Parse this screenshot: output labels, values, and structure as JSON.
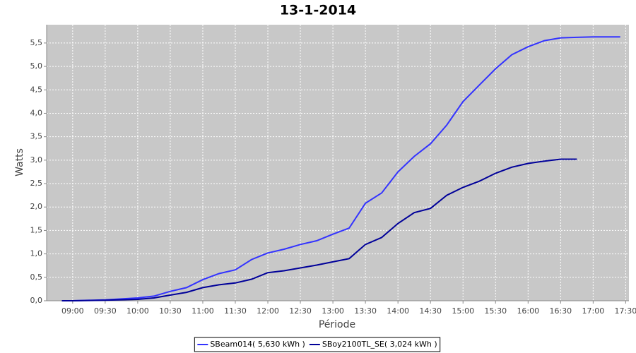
{
  "chart_data": {
    "type": "line",
    "title": "13-1-2014",
    "x_label": "Période",
    "y_label": "Watts",
    "x": [
      "08:50",
      "09:00",
      "09:30",
      "10:00",
      "10:15",
      "10:30",
      "10:45",
      "11:00",
      "11:15",
      "11:30",
      "11:45",
      "12:00",
      "12:15",
      "12:30",
      "12:45",
      "13:00",
      "13:15",
      "13:30",
      "13:45",
      "14:00",
      "14:15",
      "14:30",
      "14:45",
      "15:00",
      "15:15",
      "15:30",
      "15:45",
      "16:00",
      "16:15",
      "16:30",
      "16:45",
      "17:00",
      "17:15",
      "17:25"
    ],
    "series": [
      {
        "name": "SBeam014( 5,630 kWh )",
        "color": "#3333ff",
        "values": [
          0,
          0,
          0.02,
          0.06,
          0.1,
          0.2,
          0.28,
          0.45,
          0.58,
          0.66,
          0.88,
          1.02,
          1.1,
          1.2,
          1.28,
          1.42,
          1.55,
          2.08,
          2.3,
          2.75,
          3.08,
          3.35,
          3.75,
          4.25,
          4.6,
          4.95,
          5.25,
          5.42,
          5.55,
          5.61,
          5.62,
          5.63,
          5.63,
          5.63
        ]
      },
      {
        "name": "SBoy2100TL_SE( 3,024 kWh )",
        "color": "#000099",
        "values": [
          0,
          0,
          0.01,
          0.03,
          0.06,
          0.12,
          0.18,
          0.28,
          0.34,
          0.38,
          0.46,
          0.6,
          0.64,
          0.7,
          0.76,
          0.83,
          0.9,
          1.2,
          1.35,
          1.65,
          1.88,
          1.97,
          2.25,
          2.42,
          2.55,
          2.72,
          2.85,
          2.93,
          2.98,
          3.02,
          3.02,
          null,
          null,
          null
        ]
      }
    ],
    "xlim": [
      "08:36",
      "17:33"
    ],
    "xticks": [
      "09:00",
      "09:30",
      "10:00",
      "10:30",
      "11:00",
      "11:30",
      "12:00",
      "12:30",
      "13:00",
      "13:30",
      "14:00",
      "14:30",
      "15:00",
      "15:30",
      "16:00",
      "16:30",
      "17:00",
      "17:30"
    ],
    "ylim": [
      0,
      5.89
    ],
    "yticks": [
      {
        "value": 0,
        "label": "0,0"
      },
      {
        "value": 0.5,
        "label": "0,5"
      },
      {
        "value": 1,
        "label": "1,0"
      },
      {
        "value": 1.5,
        "label": "1,5"
      },
      {
        "value": 2,
        "label": "2,0"
      },
      {
        "value": 2.5,
        "label": "2,5"
      },
      {
        "value": 3,
        "label": "3,0"
      },
      {
        "value": 3.5,
        "label": "3,5"
      },
      {
        "value": 4,
        "label": "4,0"
      },
      {
        "value": 4.5,
        "label": "4,5"
      },
      {
        "value": 5,
        "label": "5,0"
      },
      {
        "value": 5.5,
        "label": "5,5"
      }
    ],
    "grid": true,
    "legend": "bottom"
  }
}
